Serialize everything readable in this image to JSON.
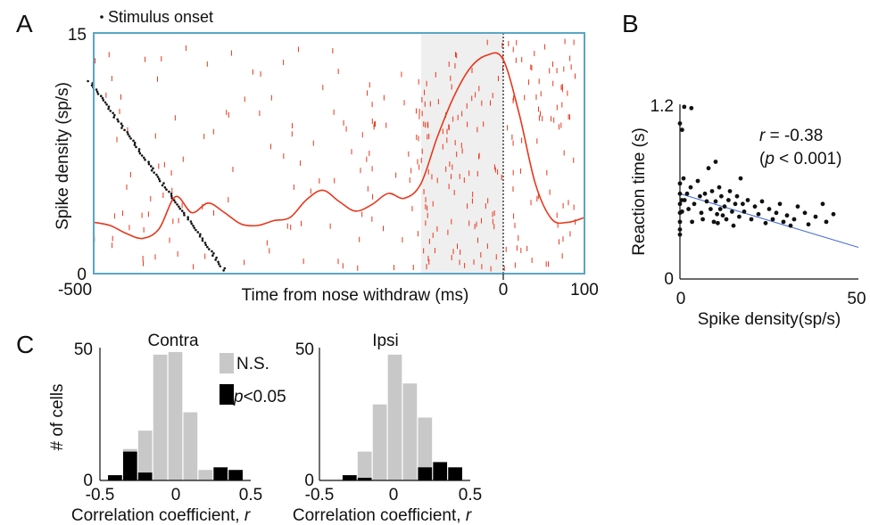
{
  "panels": {
    "a": {
      "letter": "A"
    },
    "b": {
      "letter": "B"
    },
    "c": {
      "letter": "C"
    }
  },
  "colors": {
    "raster": "#e8361c",
    "density_line": "#e8361c",
    "stimulus_dots": "#111111",
    "frame": "#5aa6c4",
    "shade": "#f0efef",
    "scatter": "#111111",
    "fit_line": "#4a6ed8",
    "hist_ns": "#c8c8c8",
    "hist_sig": "#000000"
  },
  "chart_data": [
    {
      "id": "A",
      "type": "line",
      "legend": {
        "marker": "·",
        "label": "Stimulus onset",
        "position": "top-left"
      },
      "xlabel": "Time from nose withdraw (ms)",
      "ylabel": "Spike density (sp/s)",
      "xlim": [
        -500,
        100
      ],
      "ylim": [
        0,
        15
      ],
      "xticks": [
        "-500",
        "0",
        "100"
      ],
      "yticks": [
        "0",
        "15"
      ],
      "shaded_region": [
        -100,
        0
      ],
      "vertical_marker_at": 0,
      "series": [
        {
          "x": [
            -500,
            -480,
            -460,
            -440,
            -420,
            -400,
            -380,
            -360,
            -340,
            -320,
            -300,
            -280,
            -260,
            -240,
            -220,
            -200,
            -180,
            -160,
            -140,
            -120,
            -100,
            -80,
            -60,
            -40,
            -20,
            0,
            20,
            40,
            60,
            80,
            100
          ],
          "y": [
            3.2,
            3.0,
            2.5,
            2.2,
            2.8,
            4.8,
            3.8,
            4.4,
            3.8,
            3.1,
            3.0,
            3.3,
            3.5,
            4.6,
            5.2,
            4.5,
            3.9,
            4.3,
            5.0,
            4.7,
            5.6,
            8.5,
            11.0,
            12.8,
            13.6,
            13.4,
            10.0,
            5.6,
            3.4,
            3.2,
            3.5
          ]
        }
      ],
      "stimulus_onsets": {
        "start_time": -505,
        "end_time": -340,
        "start_trial": 12.0,
        "end_trial": 0.2,
        "count": 90
      },
      "raster_spikes": 320
    },
    {
      "id": "B",
      "type": "scatter",
      "xlabel": "Spike density(sp/s)",
      "ylabel": "Reaction time (s)",
      "xlim": [
        0,
        50
      ],
      "ylim": [
        0,
        1.2
      ],
      "xticks": [
        "0",
        "50"
      ],
      "yticks": [
        "0",
        "1.2"
      ],
      "annotation": {
        "r_label": "r",
        "r_text": " = -0.38",
        "p_open": "(",
        "p_label": "p",
        "p_text": " < 0.001)"
      },
      "points": [
        [
          0,
          1.05
        ],
        [
          0.6,
          1.0
        ],
        [
          1.2,
          1.18
        ],
        [
          3.2,
          1.17
        ],
        [
          0,
          0.58
        ],
        [
          0,
          0.5
        ],
        [
          0,
          0.42
        ],
        [
          0,
          0.35
        ],
        [
          0,
          0.28
        ],
        [
          0,
          0.22
        ],
        [
          0,
          0.18
        ],
        [
          0.5,
          0.45
        ],
        [
          0.6,
          0.36
        ],
        [
          1,
          0.62
        ],
        [
          1.3,
          0.45
        ],
        [
          2,
          0.5
        ],
        [
          2.4,
          0.38
        ],
        [
          3,
          0.55
        ],
        [
          3.4,
          0.28
        ],
        [
          4,
          0.42
        ],
        [
          5,
          0.6
        ],
        [
          5.6,
          0.48
        ],
        [
          6,
          0.35
        ],
        [
          6.4,
          0.3
        ],
        [
          7,
          0.5
        ],
        [
          7.5,
          0.44
        ],
        [
          8,
          0.7
        ],
        [
          8.6,
          0.38
        ],
        [
          9,
          0.52
        ],
        [
          9.5,
          0.28
        ],
        [
          10,
          0.75
        ],
        [
          10,
          0.44
        ],
        [
          10.4,
          0.34
        ],
        [
          10.6,
          0.27
        ],
        [
          11,
          0.55
        ],
        [
          11.3,
          0.38
        ],
        [
          11.6,
          0.48
        ],
        [
          12,
          0.33
        ],
        [
          12.5,
          0.4
        ],
        [
          13,
          0.3
        ],
        [
          13.6,
          0.45
        ],
        [
          14,
          0.52
        ],
        [
          14.6,
          0.36
        ],
        [
          15,
          0.25
        ],
        [
          15.5,
          0.42
        ],
        [
          16,
          0.48
        ],
        [
          16.6,
          0.32
        ],
        [
          17,
          0.62
        ],
        [
          17.6,
          0.42
        ],
        [
          18,
          0.36
        ],
        [
          19,
          0.45
        ],
        [
          20,
          0.3
        ],
        [
          21,
          0.4
        ],
        [
          22,
          0.34
        ],
        [
          23,
          0.44
        ],
        [
          24,
          0.27
        ],
        [
          25,
          0.38
        ],
        [
          26,
          0.3
        ],
        [
          27,
          0.35
        ],
        [
          28,
          0.42
        ],
        [
          29,
          0.28
        ],
        [
          30,
          0.33
        ],
        [
          31,
          0.25
        ],
        [
          32,
          0.3
        ],
        [
          33,
          0.4
        ],
        [
          35,
          0.35
        ],
        [
          36,
          0.26
        ],
        [
          38,
          0.32
        ],
        [
          40,
          0.42
        ],
        [
          41,
          0.28
        ],
        [
          43,
          0.34
        ]
      ],
      "fit_line": {
        "x": [
          0,
          50
        ],
        "y": [
          0.5,
          0.08
        ]
      }
    },
    {
      "id": "C-contra",
      "type": "bar",
      "title": "Contra",
      "xlabel": "Correlation coefficient, ",
      "xlabel_var": "r",
      "ylabel": "# of cells",
      "xlim": [
        -0.5,
        0.5
      ],
      "ylim": [
        0,
        50
      ],
      "xticks": [
        "-0.5",
        "0",
        "0.5"
      ],
      "yticks": [
        "0",
        "50"
      ],
      "bin_centers": [
        -0.4,
        -0.3,
        -0.2,
        -0.1,
        0,
        0.1,
        0.2,
        0.3,
        0.4
      ],
      "bin_width": 0.1,
      "legend": {
        "ns_label": "N.S.",
        "sig_var": "p",
        "sig_text": "<0.05"
      },
      "series": [
        {
          "name": "N.S.",
          "values": [
            2,
            12,
            19,
            48,
            49,
            26,
            4,
            4,
            3
          ]
        },
        {
          "name": "p<0.05",
          "values": [
            2,
            11,
            3,
            0,
            0,
            0,
            0,
            5,
            4
          ]
        }
      ]
    },
    {
      "id": "C-ipsi",
      "type": "bar",
      "title": "Ipsi",
      "xlabel": "Correlation coefficient, ",
      "xlabel_var": "r",
      "ylabel": "",
      "xlim": [
        -0.5,
        0.5
      ],
      "ylim": [
        0,
        50
      ],
      "xticks": [
        "-0.5",
        "0",
        "0.5"
      ],
      "yticks": [
        "0",
        "50"
      ],
      "bin_centers": [
        -0.4,
        -0.3,
        -0.2,
        -0.1,
        0,
        0.1,
        0.2,
        0.3,
        0.4
      ],
      "bin_width": 0.1,
      "series": [
        {
          "name": "N.S.",
          "values": [
            0,
            2,
            11,
            29,
            48,
            37,
            24,
            3,
            0
          ]
        },
        {
          "name": "p<0.05",
          "values": [
            0,
            2,
            1,
            0,
            0,
            0,
            5,
            7,
            5
          ]
        }
      ]
    }
  ]
}
